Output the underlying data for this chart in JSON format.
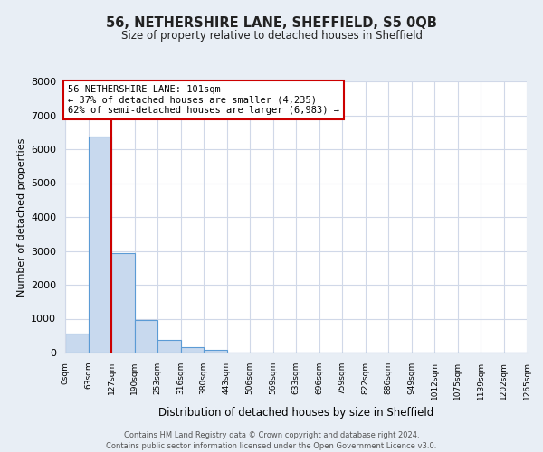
{
  "title": "56, NETHERSHIRE LANE, SHEFFIELD, S5 0QB",
  "subtitle": "Size of property relative to detached houses in Sheffield",
  "xlabel": "Distribution of detached houses by size in Sheffield",
  "ylabel": "Number of detached properties",
  "bar_values": [
    560,
    6380,
    2930,
    970,
    380,
    170,
    80,
    0,
    0,
    0,
    0,
    0,
    0,
    0,
    0,
    0,
    0,
    0,
    0,
    0
  ],
  "bin_labels": [
    "0sqm",
    "63sqm",
    "127sqm",
    "190sqm",
    "253sqm",
    "316sqm",
    "380sqm",
    "443sqm",
    "506sqm",
    "569sqm",
    "633sqm",
    "696sqm",
    "759sqm",
    "822sqm",
    "886sqm",
    "949sqm",
    "1012sqm",
    "1075sqm",
    "1139sqm",
    "1202sqm",
    "1265sqm"
  ],
  "bar_fill_color": "#c8d9ee",
  "bar_edge_color": "#5b9bd5",
  "vline_color": "#cc0000",
  "ylim": [
    0,
    8000
  ],
  "yticks": [
    0,
    1000,
    2000,
    3000,
    4000,
    5000,
    6000,
    7000,
    8000
  ],
  "annotation_line1": "56 NETHERSHIRE LANE: 101sqm",
  "annotation_line2": "← 37% of detached houses are smaller (4,235)",
  "annotation_line3": "62% of semi-detached houses are larger (6,983) →",
  "annotation_box_color": "#ffffff",
  "annotation_box_edge": "#cc0000",
  "footer_line1": "Contains HM Land Registry data © Crown copyright and database right 2024.",
  "footer_line2": "Contains public sector information licensed under the Open Government Licence v3.0.",
  "background_color": "#e8eef5",
  "plot_bg_color": "#ffffff",
  "grid_color": "#d0d8e8",
  "vline_x_index": 2
}
